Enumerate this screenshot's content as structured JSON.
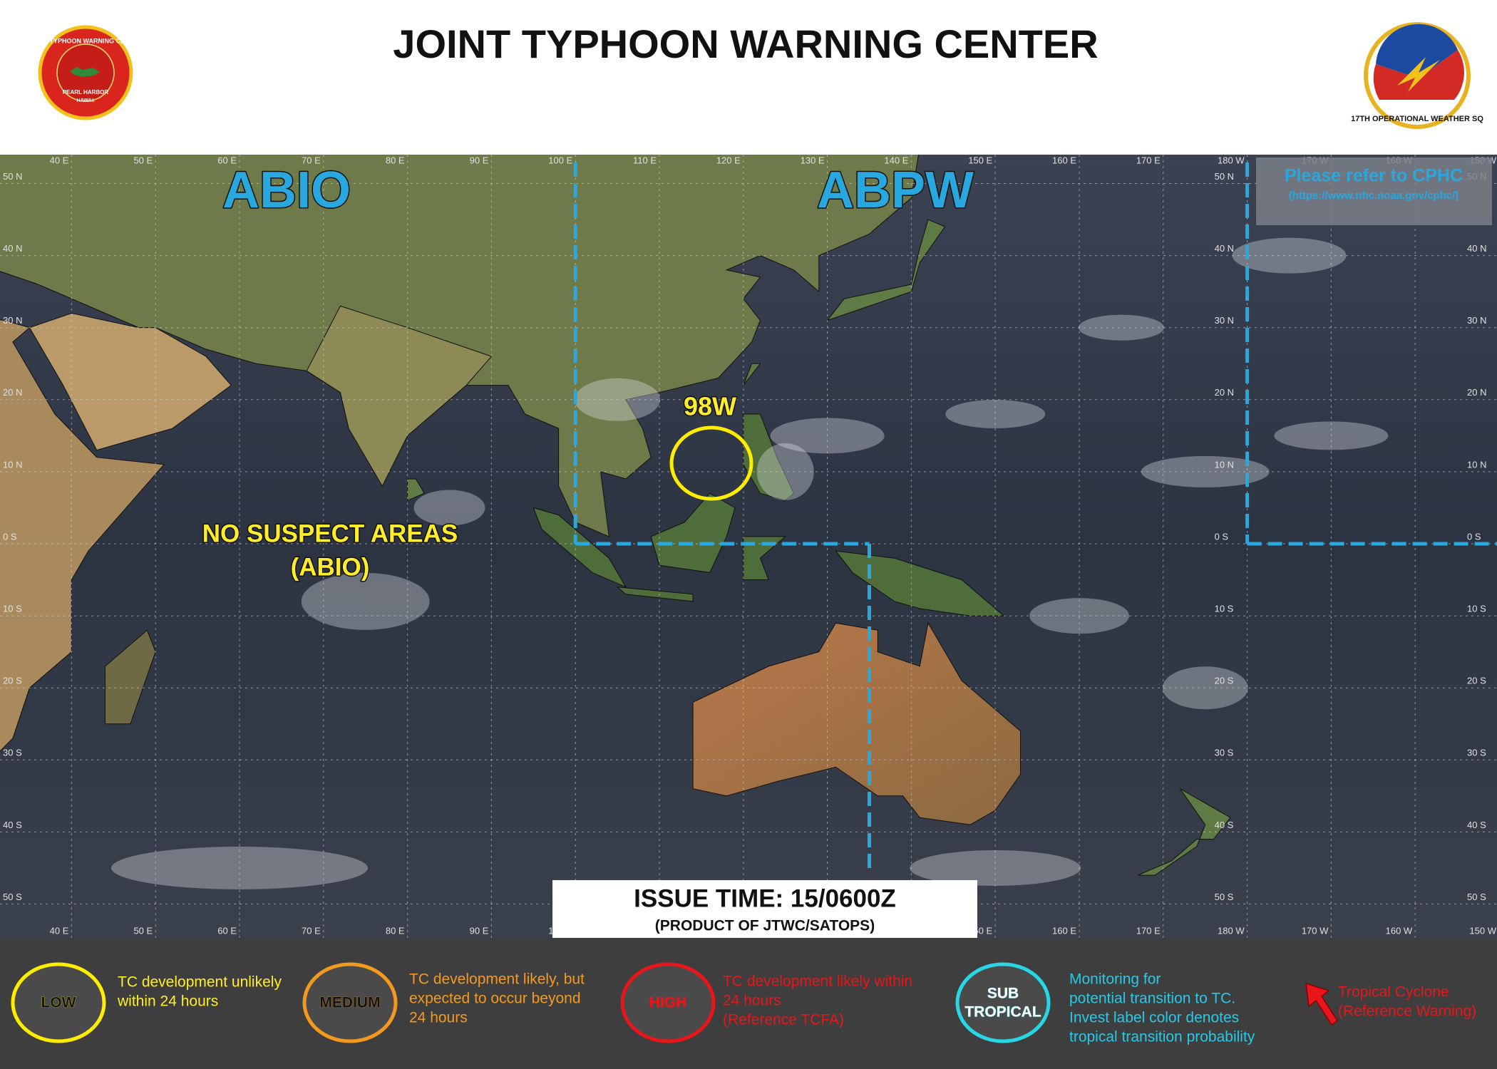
{
  "header": {
    "title": "JOINT TYPHOON WARNING CENTER",
    "left_logo": [
      "JOINT TYPHOON WARNING CENTER",
      "PEARL HARBOR",
      "HAWAII"
    ],
    "right_logo": "17TH OPERATIONAL WEATHER SQ"
  },
  "map": {
    "longitude_labels": [
      "40 E",
      "50 E",
      "60 E",
      "70 E",
      "80 E",
      "90 E",
      "100 E",
      "110 E",
      "120 E",
      "130 E",
      "140 E",
      "150 E",
      "160 E",
      "170 E",
      "180 W",
      "170 W",
      "160 W",
      "150 W"
    ],
    "latitude_labels": [
      "50 N",
      "40 N",
      "30 N",
      "20 N",
      "10 N",
      "0 S",
      "10 S",
      "20 S",
      "30 S",
      "40 S",
      "50 S"
    ],
    "regions": {
      "abio": "ABIO",
      "abpw": "ABPW"
    },
    "cphc_note": {
      "title": "Please refer to CPHC",
      "url": "(https://www.nhc.noaa.gov/cphc/)"
    },
    "invest": {
      "label": "98W"
    },
    "abio_status": [
      "NO SUSPECT AREAS",
      "(ABIO)"
    ]
  },
  "issue": {
    "time": "ISSUE TIME: 15/0600Z",
    "product": "(PRODUCT OF JTWC/SATOPS)"
  },
  "legend": [
    {
      "label": [
        "LOW"
      ],
      "description": [
        "TC development  unlikely",
        "within 24 hours"
      ]
    },
    {
      "label": [
        "MEDIUM"
      ],
      "description": [
        "TC development  likely, but",
        "expected to occur beyond",
        "24 hours"
      ]
    },
    {
      "label": [
        "HIGH"
      ],
      "description": [
        "TC development  likely within",
        "24 hours",
        "(Reference TCFA)"
      ]
    },
    {
      "label": [
        "SUB",
        "TROPICAL"
      ],
      "description": [
        "Monitoring  for",
        "potential  transition to TC.",
        "Invest label color denotes",
        "tropical transition probability"
      ]
    },
    {
      "label": [],
      "description": [
        "Tropical Cyclone",
        "(Reference Warning)"
      ]
    }
  ]
}
